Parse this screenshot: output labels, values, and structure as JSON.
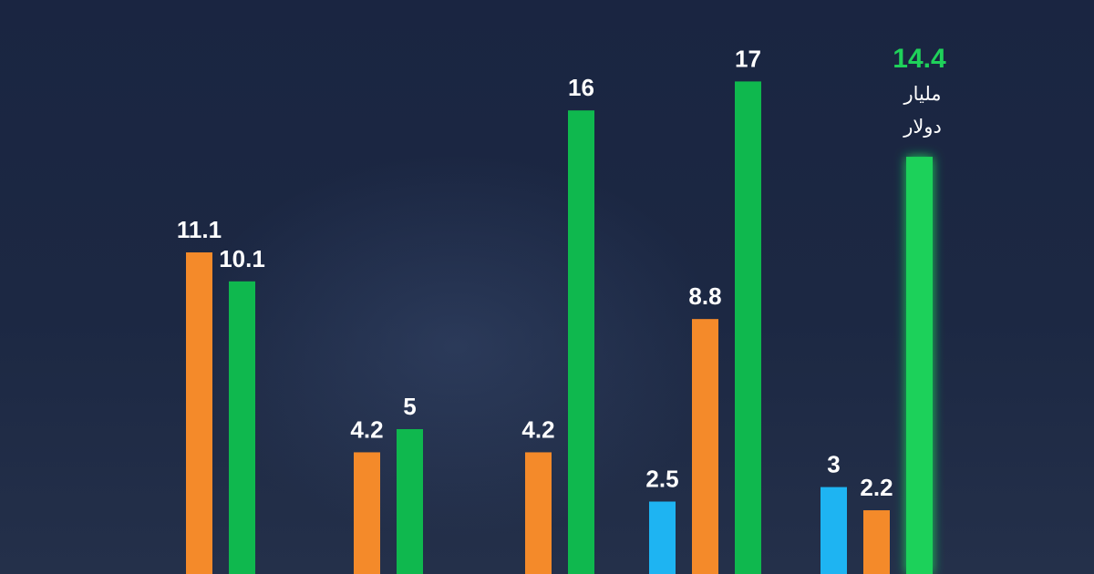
{
  "chart_data": {
    "type": "bar",
    "title": "",
    "xlabel": "",
    "ylabel": "",
    "ylim": [
      0,
      17.6
    ],
    "grid": false,
    "legend": "none",
    "unit_label": [
      "مليار",
      "دولار"
    ],
    "colors": {
      "blue": "#1eb4f2",
      "orange": "#f48a2a",
      "green": "#0fb84e",
      "highlight": "#1fd15a"
    },
    "groups": [
      {
        "values": [
          {
            "value": 11.1,
            "label": "11.1",
            "color": "orange"
          },
          {
            "value": 10.1,
            "label": "10.1",
            "color": "green"
          }
        ]
      },
      {
        "values": [
          {
            "value": 4.2,
            "label": "4.2",
            "color": "orange"
          },
          {
            "value": 5,
            "label": "5",
            "color": "green"
          }
        ]
      },
      {
        "values": [
          {
            "value": 4.2,
            "label": "4.2",
            "color": "orange"
          },
          {
            "value": 16,
            "label": "16",
            "color": "green"
          }
        ]
      },
      {
        "values": [
          {
            "value": 2.5,
            "label": "2.5",
            "color": "blue"
          },
          {
            "value": 8.8,
            "label": "8.8",
            "color": "orange"
          },
          {
            "value": 17,
            "label": "17",
            "color": "green"
          }
        ]
      },
      {
        "values": [
          {
            "value": 3,
            "label": "3",
            "color": "blue"
          },
          {
            "value": 2.2,
            "label": "2.2",
            "color": "orange"
          },
          {
            "value": 14.4,
            "label": "14.4",
            "color": "green",
            "highlight": true
          }
        ]
      }
    ]
  }
}
